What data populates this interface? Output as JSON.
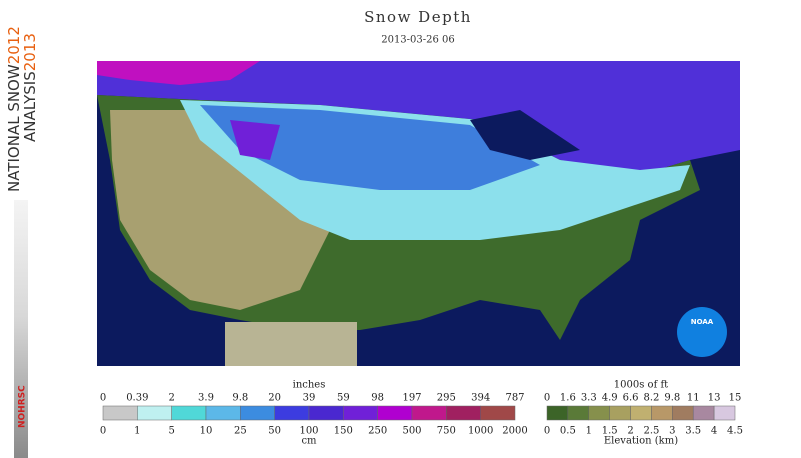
{
  "sidebar": {
    "line1": "NATIONAL SNOW",
    "year1": "2012",
    "line2": "ANALYSIS",
    "year2": "2013",
    "badge": "NOHRSC"
  },
  "header": {
    "title": "Snow Depth",
    "subtitle": "2013-03-26 06"
  },
  "map": {
    "logo": "NOAA"
  },
  "depth_legend": {
    "top_unit": "inches",
    "top_labels": [
      0,
      0.39,
      2,
      3.9,
      9.8,
      20,
      39,
      59,
      98,
      197,
      295,
      394,
      787
    ],
    "bottom_labels": [
      0,
      1,
      5,
      10,
      25,
      50,
      100,
      150,
      250,
      500,
      750,
      1000,
      2000
    ],
    "bottom_unit": "cm",
    "colors": [
      "#c8c8c8",
      "#bff0f0",
      "#50d8d8",
      "#5cb8e8",
      "#3c8ce0",
      "#3c3ce0",
      "#4a28d0",
      "#7020d8",
      "#b000d0",
      "#c0188c",
      "#a02060",
      "#a04848"
    ]
  },
  "elevation_legend": {
    "top_unit": "1000s of ft",
    "top_labels": [
      0,
      1.6,
      3.3,
      4.9,
      6.6,
      8.2,
      9.8,
      11,
      13,
      15
    ],
    "bottom_labels": [
      0,
      0.5,
      1,
      1.5,
      2,
      2.5,
      3,
      3.5,
      4,
      4.5
    ],
    "caption": "Elevation (km)",
    "colors": [
      "#3c6428",
      "#5a7a38",
      "#86904c",
      "#a8a060",
      "#c0b070",
      "#b89868",
      "#a07c60",
      "#a888a0",
      "#d8c8e0"
    ]
  }
}
